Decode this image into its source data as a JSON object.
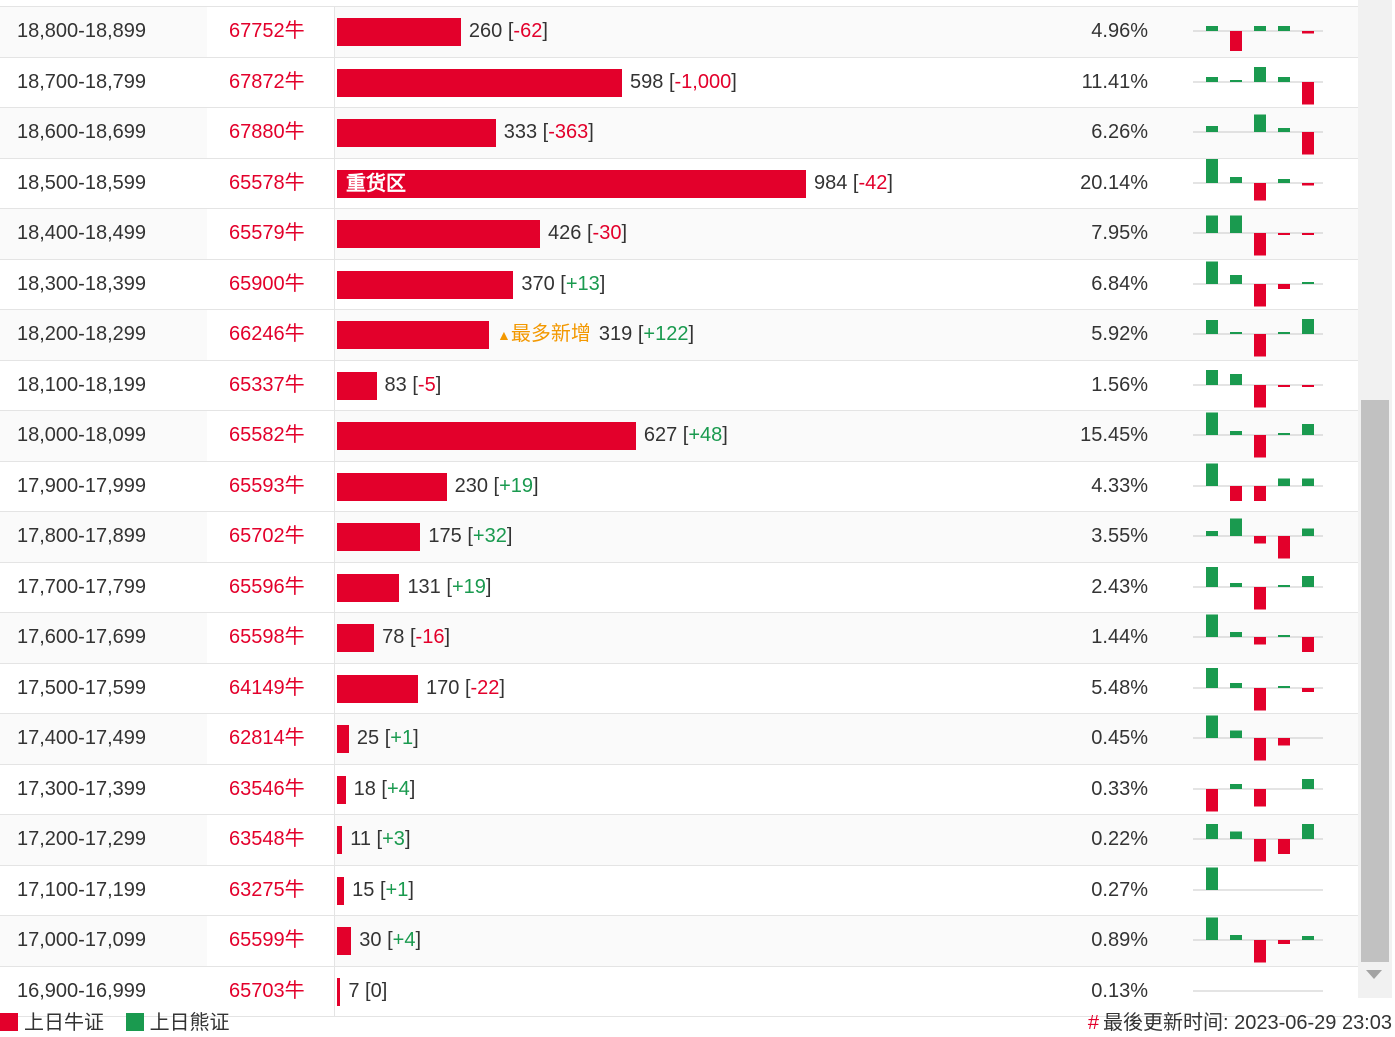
{
  "colors": {
    "bull": "#e3002b",
    "bear": "#1a9a4f",
    "note": "#f39800"
  },
  "rows": [
    {
      "range": "18,800-18,899",
      "code": "67752牛",
      "value": 260,
      "bar_label": "",
      "note": "",
      "change": "-62",
      "pct": "4.96%",
      "spark": [
        1,
        -4,
        1,
        1,
        -0.5
      ]
    },
    {
      "range": "18,700-18,799",
      "code": "67872牛",
      "value": 598,
      "bar_label": "",
      "note": "",
      "change": "-1,000",
      "pct": "11.41%",
      "spark": [
        1,
        0.3,
        3,
        1,
        -4.5
      ]
    },
    {
      "range": "18,600-18,699",
      "code": "67880牛",
      "value": 333,
      "bar_label": "",
      "note": "",
      "change": "-363",
      "pct": "6.26%",
      "spark": [
        1.2,
        0,
        3.5,
        0.8,
        -4.5
      ]
    },
    {
      "range": "18,500-18,599",
      "code": "65578牛",
      "value": 984,
      "bar_label": "重货区",
      "note": "",
      "change": "-42",
      "pct": "20.14%",
      "spark": [
        5,
        1.2,
        -3.5,
        0.8,
        -0.5
      ]
    },
    {
      "range": "18,400-18,499",
      "code": "65579牛",
      "value": 426,
      "bar_label": "",
      "note": "",
      "change": "-30",
      "pct": "7.95%",
      "spark": [
        3.5,
        3.5,
        -4.5,
        -0.3,
        -0.3
      ]
    },
    {
      "range": "18,300-18,399",
      "code": "65900牛",
      "value": 370,
      "bar_label": "",
      "note": "",
      "change": "+13",
      "pct": "6.84%",
      "spark": [
        4.5,
        1.8,
        -4.5,
        -1,
        0.4
      ]
    },
    {
      "range": "18,200-18,299",
      "code": "66246牛",
      "value": 319,
      "bar_label": "",
      "note": "最多新增",
      "change": "+122",
      "pct": "5.92%",
      "spark": [
        2.8,
        0.4,
        -4.5,
        0.4,
        3
      ]
    },
    {
      "range": "18,100-18,199",
      "code": "65337牛",
      "value": 83,
      "bar_label": "",
      "note": "",
      "change": "-5",
      "pct": "1.56%",
      "spark": [
        3,
        2.2,
        -4.5,
        -0.3,
        -0.3
      ]
    },
    {
      "range": "18,000-18,099",
      "code": "65582牛",
      "value": 627,
      "bar_label": "",
      "note": "",
      "change": "+48",
      "pct": "15.45%",
      "spark": [
        4.5,
        0.8,
        -4.5,
        0.2,
        2.2
      ]
    },
    {
      "range": "17,900-17,999",
      "code": "65593牛",
      "value": 230,
      "bar_label": "",
      "note": "",
      "change": "+19",
      "pct": "4.33%",
      "spark": [
        4.5,
        -3,
        -3,
        1.5,
        1.5
      ]
    },
    {
      "range": "17,800-17,899",
      "code": "65702牛",
      "value": 175,
      "bar_label": "",
      "note": "",
      "change": "+32",
      "pct": "3.55%",
      "spark": [
        1,
        3.5,
        -1.5,
        -4.5,
        1.5
      ]
    },
    {
      "range": "17,700-17,799",
      "code": "65596牛",
      "value": 131,
      "bar_label": "",
      "note": "",
      "change": "+19",
      "pct": "2.43%",
      "spark": [
        4,
        0.8,
        -4.5,
        0.3,
        2.2
      ]
    },
    {
      "range": "17,600-17,699",
      "code": "65598牛",
      "value": 78,
      "bar_label": "",
      "note": "",
      "change": "-16",
      "pct": "1.44%",
      "spark": [
        4.5,
        1,
        -1.5,
        0.3,
        -3
      ]
    },
    {
      "range": "17,500-17,599",
      "code": "64149牛",
      "value": 170,
      "bar_label": "",
      "note": "",
      "change": "-22",
      "pct": "5.48%",
      "spark": [
        4,
        1,
        -4.5,
        0.3,
        -0.8
      ]
    },
    {
      "range": "17,400-17,499",
      "code": "62814牛",
      "value": 25,
      "bar_label": "",
      "note": "",
      "change": "+1",
      "pct": "0.45%",
      "spark": [
        4.5,
        1.5,
        -4.5,
        -1.5,
        0
      ]
    },
    {
      "range": "17,300-17,399",
      "code": "63546牛",
      "value": 18,
      "bar_label": "",
      "note": "",
      "change": "+4",
      "pct": "0.33%",
      "spark": [
        -4.5,
        1,
        -3.5,
        0,
        2
      ]
    },
    {
      "range": "17,200-17,299",
      "code": "63548牛",
      "value": 11,
      "bar_label": "",
      "note": "",
      "change": "+3",
      "pct": "0.22%",
      "spark": [
        3,
        1.5,
        -4.5,
        -3,
        3
      ]
    },
    {
      "range": "17,100-17,199",
      "code": "63275牛",
      "value": 15,
      "bar_label": "",
      "note": "",
      "change": "+1",
      "pct": "0.27%",
      "spark": [
        4.5,
        0,
        0,
        0,
        0
      ]
    },
    {
      "range": "17,000-17,099",
      "code": "65599牛",
      "value": 30,
      "bar_label": "",
      "note": "",
      "change": "+4",
      "pct": "0.89%",
      "spark": [
        4.5,
        1,
        -4.5,
        -0.8,
        0.8
      ]
    },
    {
      "range": "16,900-16,999",
      "code": "65703牛",
      "value": 7,
      "bar_label": "",
      "note": "",
      "change": "0",
      "pct": "0.13%",
      "spark": [
        0,
        0,
        0,
        0,
        0
      ]
    }
  ],
  "legend": {
    "bull_label": "上日牛证",
    "bear_label": "上日熊证"
  },
  "footer": {
    "hash": "#",
    "updated_label": "最後更新时间:",
    "updated_time": "2023-06-29 23:03"
  }
}
